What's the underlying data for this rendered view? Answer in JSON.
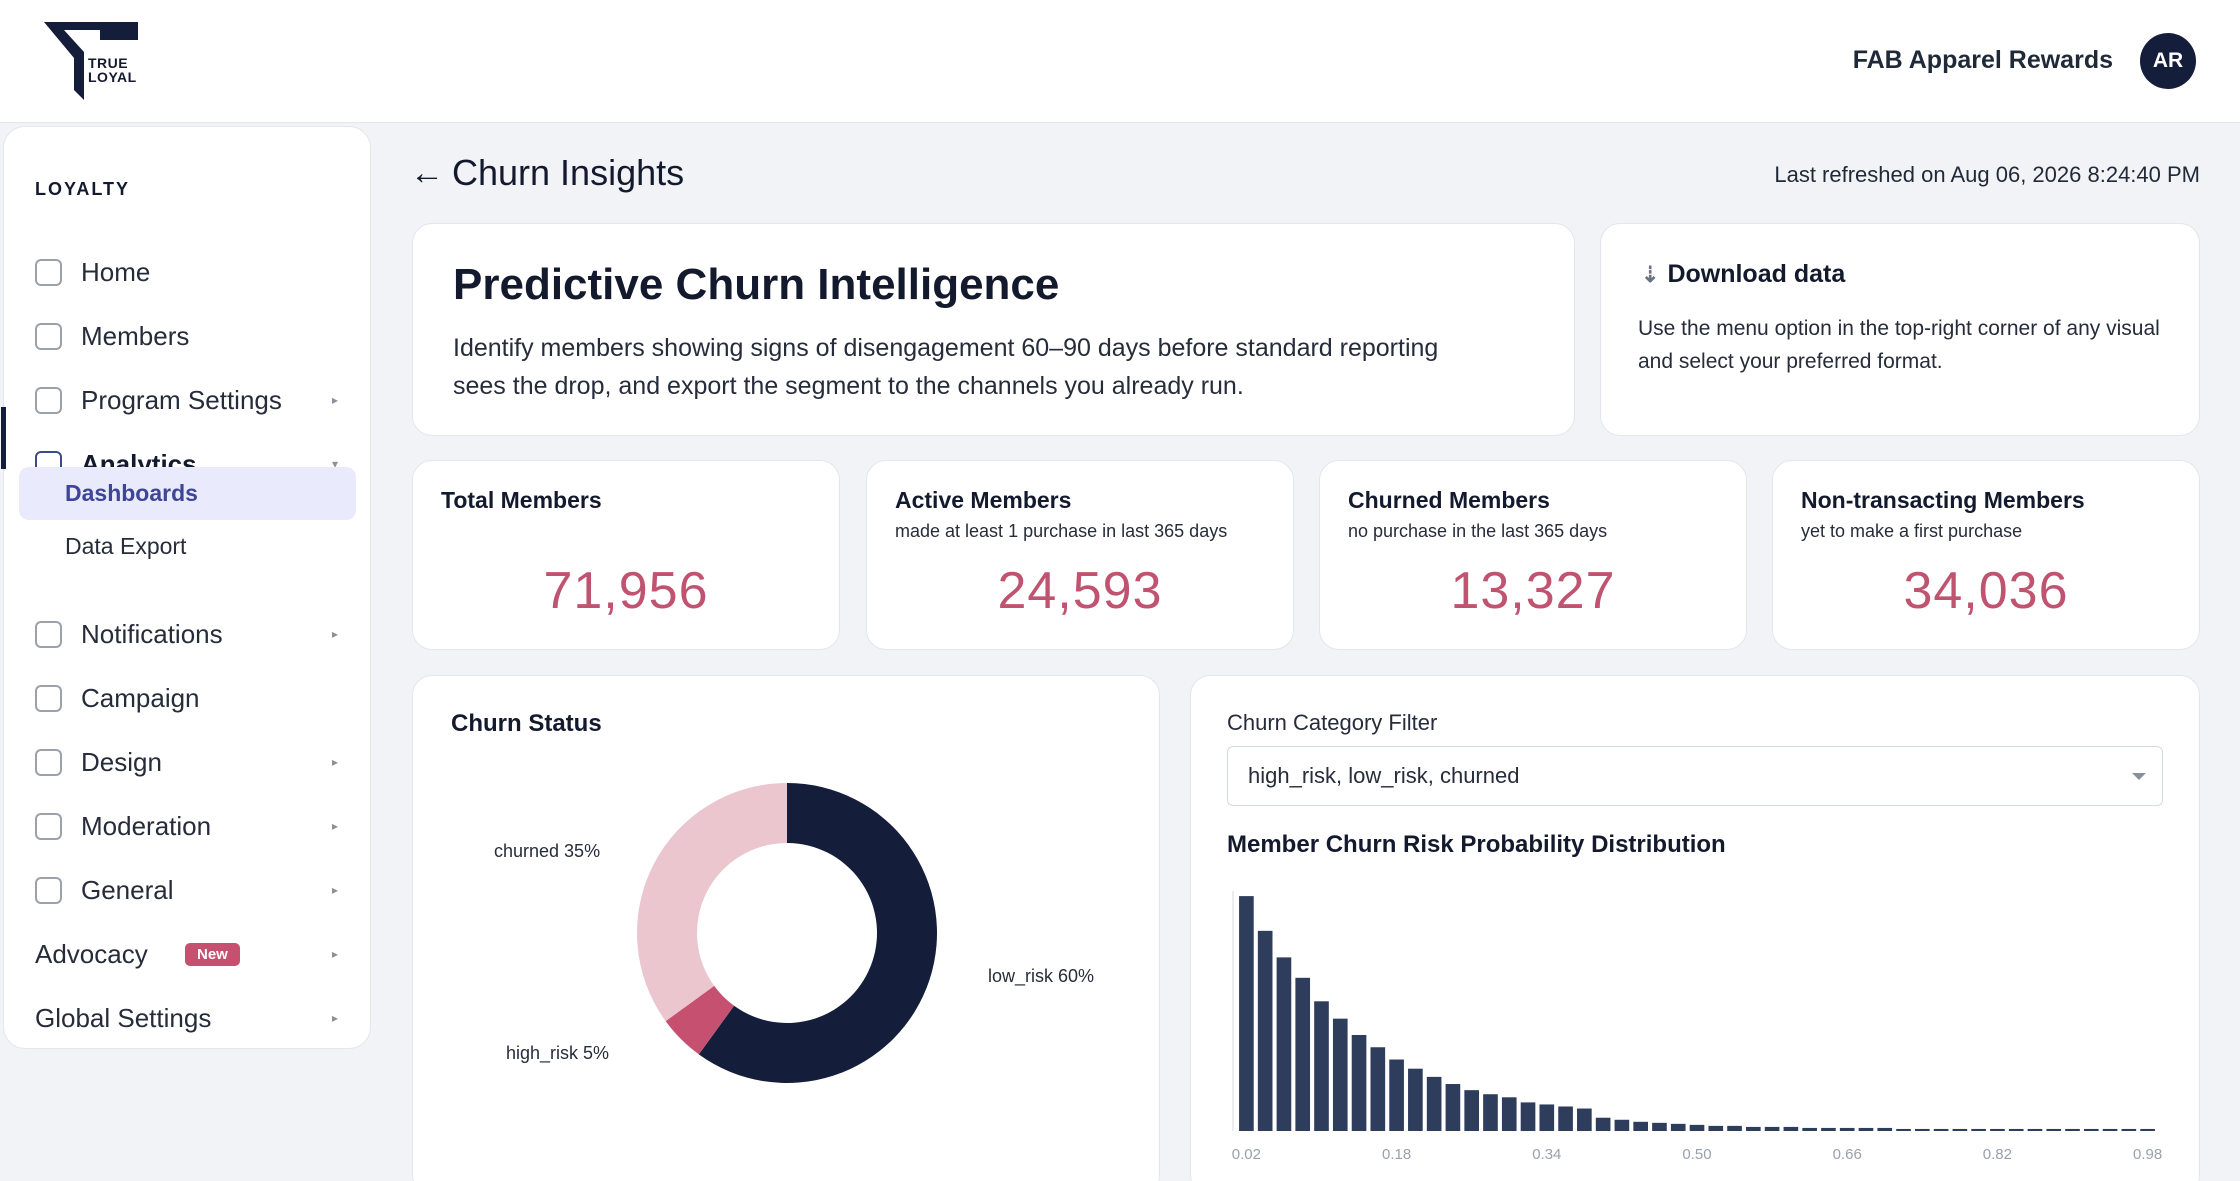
{
  "header": {
    "logo_text_line1": "TRUE",
    "logo_text_line2": "LOYAL",
    "org_name": "FAB Apparel Rewards",
    "avatar_initials": "AR"
  },
  "sidebar": {
    "section_label": "LOYALTY",
    "items": [
      {
        "label": "Home",
        "has_chevron": false
      },
      {
        "label": "Members",
        "has_chevron": false
      },
      {
        "label": "Program Settings",
        "has_chevron": true
      },
      {
        "label": "Analytics",
        "has_chevron": true,
        "expanded": true
      },
      {
        "label": "Notifications",
        "has_chevron": true
      },
      {
        "label": "Campaign",
        "has_chevron": false
      },
      {
        "label": "Design",
        "has_chevron": true
      },
      {
        "label": "Moderation",
        "has_chevron": true
      },
      {
        "label": "General",
        "has_chevron": true
      },
      {
        "label": "Advocacy",
        "has_chevron": true,
        "badge": "New"
      },
      {
        "label": "Global Settings",
        "has_chevron": true
      }
    ],
    "sub_items": [
      {
        "label": "Dashboards",
        "selected": true
      },
      {
        "label": "Data Export",
        "selected": false
      }
    ]
  },
  "page": {
    "title": "Churn Insights",
    "last_refreshed": "Last refreshed on Aug 06, 2026 8:24:40 PM"
  },
  "intro": {
    "title": "Predictive Churn Intelligence",
    "description": "Identify members showing signs of disengagement 60–90 days before standard reporting sees the drop, and export the segment to the channels you already run."
  },
  "download": {
    "title": "Download data",
    "description": "Use the menu option in the top-right corner of any visual and select your preferred format."
  },
  "stats": [
    {
      "title": "Total Members",
      "subtitle": "",
      "value": "71,956"
    },
    {
      "title": "Active Members",
      "subtitle": "made at least 1 purchase in last 365 days",
      "value": "24,593"
    },
    {
      "title": "Churned Members",
      "subtitle": "no purchase in the last 365 days",
      "value": "13,327"
    },
    {
      "title": "Non-transacting Members",
      "subtitle": "yet to make a first purchase",
      "value": "34,036"
    }
  ],
  "churn_status": {
    "title": "Churn Status",
    "labels": {
      "churned": "churned 35%",
      "low_risk": "low_risk 60%",
      "high_risk": "high_risk 5%"
    }
  },
  "distribution": {
    "filter_label": "Churn Category Filter",
    "filter_value": "high_risk, low_risk, churned",
    "title": "Member Churn Risk Probability Distribution"
  },
  "colors": {
    "navy": "#141d3a",
    "accent_pink": "#c0536f",
    "light_pink": "#ebc6cf",
    "bar": "#2e3d5c"
  },
  "chart_data": [
    {
      "type": "pie",
      "title": "Churn Status",
      "categories": [
        "low_risk",
        "high_risk",
        "churned"
      ],
      "values": [
        60,
        5,
        35
      ],
      "colors": [
        "#141d3a",
        "#c5506f",
        "#ebc6cf"
      ]
    },
    {
      "type": "bar",
      "title": "Member Churn Risk Probability Distribution",
      "x_tick_labels": [
        "0.02",
        "0.18",
        "0.34",
        "0.50",
        "0.66",
        "0.82",
        "0.98"
      ],
      "x": [
        0.02,
        0.04,
        0.06,
        0.08,
        0.1,
        0.12,
        0.14,
        0.16,
        0.18,
        0.2,
        0.22,
        0.24,
        0.26,
        0.28,
        0.3,
        0.32,
        0.34,
        0.36,
        0.38,
        0.4,
        0.42,
        0.44,
        0.46,
        0.48,
        0.5,
        0.52,
        0.54,
        0.56,
        0.58,
        0.6,
        0.62,
        0.64,
        0.66,
        0.68,
        0.7,
        0.72,
        0.74,
        0.76,
        0.78,
        0.8,
        0.82,
        0.84,
        0.86,
        0.88,
        0.9,
        0.92,
        0.94,
        0.96,
        0.98
      ],
      "values": [
        230,
        196,
        170,
        150,
        127,
        110,
        94,
        82,
        70,
        61,
        53,
        46,
        40,
        36,
        33,
        28,
        26,
        24,
        22,
        13,
        11,
        9,
        8,
        7,
        6,
        5,
        5,
        4,
        4,
        4,
        3,
        3,
        3,
        3,
        3,
        2,
        2,
        2,
        2,
        2,
        2,
        2,
        2,
        2,
        2,
        2,
        2,
        2,
        2
      ],
      "ylim": [
        0,
        235
      ]
    }
  ]
}
